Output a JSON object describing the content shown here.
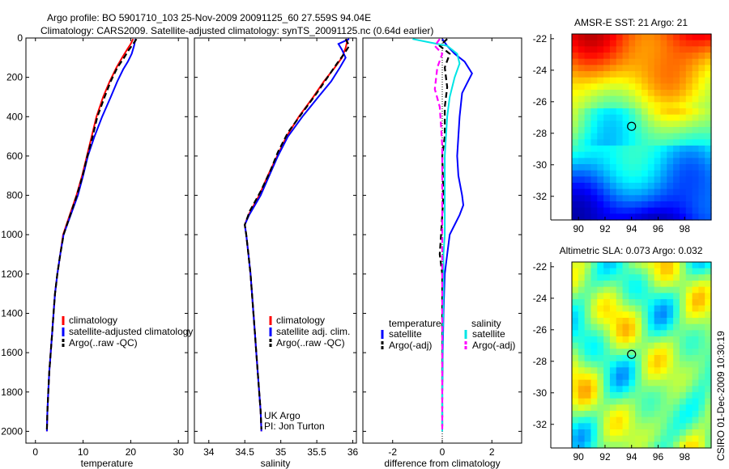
{
  "header": {
    "line1": "Argo profile: BO 5901710_103 25-Nov-2009 20091125_60 27.559S 94.04E",
    "line2": "Climatology: CARS2009. Satellite-adjusted climatology: synTS_20091125.nc (0.64d earlier)"
  },
  "side_label": "CSIRO 01-Dec-2009 10:30:19",
  "colors": {
    "red": "#ff0000",
    "blue": "#0000ff",
    "black": "#000000",
    "cyan": "#00e5e5",
    "magenta": "#ff00ff"
  },
  "chart_data": [
    {
      "type": "line",
      "xlabel": "temperature",
      "xlim": [
        -2,
        32
      ],
      "ylim": [
        0,
        2060
      ],
      "yticks": [
        "0",
        "200",
        "400",
        "600",
        "800",
        "1000",
        "1200",
        "1400",
        "1600",
        "1800",
        "2000"
      ],
      "xticks": [
        "0",
        "10",
        "20",
        "30"
      ],
      "legend": [
        "climatology",
        "satellite-adjusted climatology",
        "Argo(..raw -QC)"
      ],
      "series": [
        {
          "name": "climatology",
          "color": "red",
          "dash": false,
          "points": [
            [
              20.5,
              5
            ],
            [
              20,
              30
            ],
            [
              19.2,
              60
            ],
            [
              18.2,
              100
            ],
            [
              17,
              150
            ],
            [
              15.6,
              220
            ],
            [
              14.2,
              300
            ],
            [
              12.8,
              400
            ],
            [
              11.8,
              500
            ],
            [
              10.8,
              600
            ],
            [
              9.8,
              700
            ],
            [
              8.6,
              800
            ],
            [
              7.2,
              900
            ],
            [
              5.8,
              1000
            ],
            [
              5.2,
              1100
            ],
            [
              4.6,
              1200
            ],
            [
              4.1,
              1300
            ],
            [
              3.8,
              1400
            ],
            [
              3.5,
              1500
            ],
            [
              3.2,
              1600
            ],
            [
              2.9,
              1700
            ],
            [
              2.7,
              1800
            ],
            [
              2.5,
              1900
            ],
            [
              2.4,
              2000
            ]
          ]
        },
        {
          "name": "satellite-adjusted climatology",
          "color": "blue",
          "dash": false,
          "points": [
            [
              21,
              5
            ],
            [
              20.7,
              40
            ],
            [
              20.2,
              80
            ],
            [
              19.4,
              120
            ],
            [
              18.4,
              160
            ],
            [
              17.2,
              220
            ],
            [
              15.8,
              300
            ],
            [
              14,
              400
            ],
            [
              12.4,
              500
            ],
            [
              11,
              600
            ],
            [
              10,
              700
            ],
            [
              8.9,
              800
            ],
            [
              7.4,
              900
            ],
            [
              5.9,
              1000
            ],
            [
              5.2,
              1100
            ],
            [
              4.6,
              1200
            ],
            [
              4.1,
              1300
            ],
            [
              3.8,
              1400
            ],
            [
              3.5,
              1500
            ],
            [
              3.2,
              1600
            ],
            [
              2.9,
              1700
            ],
            [
              2.7,
              1800
            ],
            [
              2.5,
              1900
            ],
            [
              2.4,
              2000
            ]
          ]
        },
        {
          "name": "Argo(..raw -QC)",
          "color": "black",
          "dash": true,
          "points": [
            [
              21.2,
              5
            ],
            [
              20.5,
              30
            ],
            [
              19.6,
              60
            ],
            [
              18.6,
              100
            ],
            [
              17.2,
              150
            ],
            [
              15.8,
              220
            ],
            [
              14.5,
              300
            ],
            [
              13,
              400
            ],
            [
              12,
              500
            ],
            [
              10.9,
              600
            ],
            [
              9.9,
              700
            ],
            [
              8.7,
              800
            ],
            [
              7.3,
              900
            ],
            [
              5.9,
              1000
            ],
            [
              5.2,
              1100
            ],
            [
              4.6,
              1200
            ],
            [
              4.1,
              1300
            ],
            [
              3.8,
              1400
            ],
            [
              3.5,
              1500
            ],
            [
              3.2,
              1600
            ],
            [
              2.9,
              1700
            ],
            [
              2.7,
              1800
            ],
            [
              2.5,
              1900
            ],
            [
              2.4,
              1990
            ]
          ]
        }
      ]
    },
    {
      "type": "line",
      "xlabel": "salinity",
      "xlim": [
        33.8,
        36.05
      ],
      "ylim": [
        0,
        2060
      ],
      "xticks": [
        "34",
        "34.5",
        "35",
        "35.5",
        "36"
      ],
      "legend": [
        "climatology",
        "satellite adj. clim.",
        "Argo(..raw -QC)"
      ],
      "annotation": [
        "UK Argo",
        "PI: Jon Turton"
      ],
      "series": [
        {
          "name": "climatology",
          "color": "red",
          "dash": false,
          "points": [
            [
              35.93,
              5
            ],
            [
              35.9,
              50
            ],
            [
              35.85,
              100
            ],
            [
              35.75,
              150
            ],
            [
              35.6,
              220
            ],
            [
              35.45,
              300
            ],
            [
              35.25,
              400
            ],
            [
              35.08,
              500
            ],
            [
              34.95,
              600
            ],
            [
              34.82,
              700
            ],
            [
              34.7,
              800
            ],
            [
              34.55,
              900
            ],
            [
              34.5,
              950
            ],
            [
              34.52,
              1000
            ],
            [
              34.55,
              1100
            ],
            [
              34.58,
              1200
            ],
            [
              34.6,
              1300
            ],
            [
              34.62,
              1400
            ],
            [
              34.64,
              1500
            ],
            [
              34.66,
              1600
            ],
            [
              34.68,
              1700
            ],
            [
              34.7,
              1800
            ],
            [
              34.72,
              1900
            ],
            [
              34.73,
              2000
            ]
          ]
        },
        {
          "name": "satellite adj. clim.",
          "color": "blue",
          "dash": false,
          "points": [
            [
              35.95,
              5
            ],
            [
              35.8,
              30
            ],
            [
              35.85,
              60
            ],
            [
              35.9,
              100
            ],
            [
              35.82,
              150
            ],
            [
              35.7,
              220
            ],
            [
              35.52,
              300
            ],
            [
              35.3,
              400
            ],
            [
              35.1,
              500
            ],
            [
              34.96,
              600
            ],
            [
              34.84,
              700
            ],
            [
              34.72,
              800
            ],
            [
              34.56,
              900
            ],
            [
              34.5,
              950
            ],
            [
              34.52,
              1000
            ],
            [
              34.55,
              1100
            ],
            [
              34.58,
              1200
            ],
            [
              34.6,
              1300
            ],
            [
              34.62,
              1400
            ],
            [
              34.64,
              1500
            ],
            [
              34.66,
              1600
            ],
            [
              34.68,
              1700
            ],
            [
              34.7,
              1800
            ],
            [
              34.72,
              1900
            ],
            [
              34.73,
              2000
            ]
          ]
        },
        {
          "name": "Argo(..raw -QC)",
          "color": "black",
          "dash": true,
          "points": [
            [
              35.9,
              5
            ],
            [
              35.95,
              40
            ],
            [
              35.88,
              80
            ],
            [
              35.78,
              130
            ],
            [
              35.65,
              200
            ],
            [
              35.5,
              280
            ],
            [
              35.3,
              380
            ],
            [
              35.1,
              480
            ],
            [
              34.96,
              580
            ],
            [
              34.85,
              680
            ],
            [
              34.72,
              780
            ],
            [
              34.57,
              880
            ],
            [
              34.5,
              950
            ],
            [
              34.52,
              1000
            ],
            [
              34.55,
              1100
            ],
            [
              34.58,
              1200
            ],
            [
              34.6,
              1300
            ],
            [
              34.62,
              1400
            ],
            [
              34.64,
              1500
            ],
            [
              34.66,
              1600
            ],
            [
              34.68,
              1700
            ],
            [
              34.7,
              1800
            ],
            [
              34.72,
              1900
            ],
            [
              34.73,
              1990
            ]
          ]
        }
      ]
    },
    {
      "type": "line",
      "xlabel": "difference from climatology",
      "xlim": [
        -3.2,
        3.2
      ],
      "ylim": [
        0,
        2060
      ],
      "xticks": [
        "-2",
        "0",
        "2"
      ],
      "legend_titles": [
        "temperature",
        "salinity"
      ],
      "legend": [
        "satellite",
        "Argo(-adj)",
        "satellite",
        "Argo(-adj)"
      ],
      "series": [
        {
          "name": "satellite",
          "color": "blue",
          "dash": false,
          "points": [
            [
              0,
              5
            ],
            [
              0.2,
              40
            ],
            [
              0.5,
              80
            ],
            [
              0.9,
              120
            ],
            [
              1.2,
              180
            ],
            [
              1.0,
              230
            ],
            [
              0.8,
              280
            ],
            [
              0.7,
              400
            ],
            [
              0.65,
              500
            ],
            [
              0.6,
              600
            ],
            [
              0.65,
              700
            ],
            [
              0.8,
              800
            ],
            [
              0.85,
              850
            ],
            [
              0.7,
              900
            ],
            [
              0.5,
              950
            ],
            [
              0.3,
              1000
            ],
            [
              0.2,
              1100
            ],
            [
              0.1,
              1200
            ],
            [
              0.05,
              1400
            ],
            [
              0.02,
              1600
            ],
            [
              0,
              1800
            ],
            [
              0,
              2000
            ]
          ]
        },
        {
          "name": "Argo(-adj)",
          "color": "black",
          "dash": true,
          "points": [
            [
              0.2,
              5
            ],
            [
              -0.1,
              40
            ],
            [
              0.3,
              80
            ],
            [
              0.1,
              150
            ],
            [
              0.2,
              250
            ],
            [
              0.1,
              350
            ],
            [
              0.1,
              500
            ],
            [
              0,
              600
            ],
            [
              0.05,
              800
            ],
            [
              0,
              900
            ],
            [
              -0.05,
              1000
            ],
            [
              -0.1,
              1100
            ],
            [
              0,
              1200
            ],
            [
              0,
              1400
            ],
            [
              0,
              1600
            ],
            [
              0,
              1800
            ],
            [
              0,
              1990
            ]
          ]
        },
        {
          "name": "satellite",
          "color": "cyan",
          "dash": false,
          "points": [
            [
              -1.2,
              5
            ],
            [
              -0.6,
              20
            ],
            [
              0.2,
              40
            ],
            [
              0.6,
              80
            ],
            [
              0.7,
              130
            ],
            [
              0.5,
              200
            ],
            [
              0.3,
              300
            ],
            [
              0.2,
              400
            ],
            [
              0.15,
              500
            ],
            [
              0.1,
              600
            ],
            [
              0.1,
              800
            ],
            [
              0.1,
              900
            ],
            [
              0.1,
              1000
            ],
            [
              0.05,
              1100
            ],
            [
              0.05,
              1300
            ],
            [
              0.02,
              1500
            ],
            [
              0,
              1800
            ],
            [
              0,
              2000
            ]
          ]
        },
        {
          "name": "Argo(-adj)",
          "color": "magenta",
          "dash": true,
          "points": [
            [
              -0.1,
              5
            ],
            [
              -0.3,
              40
            ],
            [
              0,
              80
            ],
            [
              -0.2,
              150
            ],
            [
              -0.3,
              260
            ],
            [
              -0.1,
              350
            ],
            [
              -0.05,
              450
            ],
            [
              0,
              550
            ],
            [
              0,
              700
            ],
            [
              0,
              900
            ],
            [
              0,
              1200
            ],
            [
              0,
              1500
            ],
            [
              0,
              1800
            ],
            [
              0,
              1990
            ]
          ]
        }
      ]
    },
    {
      "type": "heatmap",
      "title": "AMSR-E SST: 21 Argo: 21",
      "xticks": [
        "90",
        "92",
        "94",
        "96",
        "98"
      ],
      "yticks": [
        "-22",
        "-24",
        "-26",
        "-28",
        "-30",
        "-32"
      ],
      "xlim": [
        89.5,
        100
      ],
      "ylim": [
        -33.5,
        -21.7
      ],
      "marker": [
        94,
        -27.56
      ]
    },
    {
      "type": "heatmap",
      "title": "Altimetric SLA: 0.073 Argo: 0.032",
      "xticks": [
        "90",
        "92",
        "94",
        "96",
        "98"
      ],
      "yticks": [
        "-22",
        "-24",
        "-26",
        "-28",
        "-30",
        "-32"
      ],
      "xlim": [
        89.5,
        100
      ],
      "ylim": [
        -33.5,
        -21.7
      ],
      "marker": [
        94,
        -27.56
      ]
    }
  ]
}
